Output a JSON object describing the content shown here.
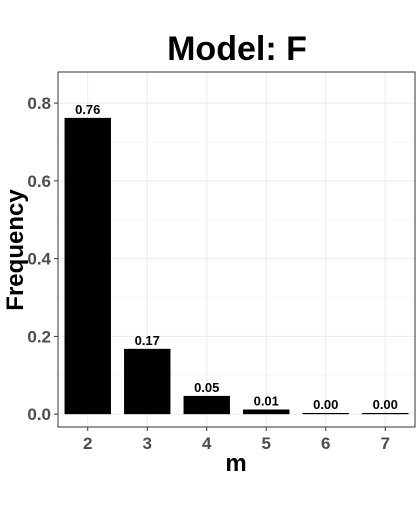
{
  "chart_data": {
    "type": "bar",
    "title": "Model: F",
    "xlabel": "m",
    "ylabel": "Frequency",
    "categories": [
      "2",
      "3",
      "4",
      "5",
      "6",
      "7"
    ],
    "values": [
      0.762,
      0.168,
      0.047,
      0.012,
      0.003,
      0.002
    ],
    "data_labels": [
      "0.76",
      "0.17",
      "0.05",
      "0.01",
      "0.00",
      "0.00"
    ],
    "ylim": [
      -0.033,
      0.88
    ],
    "yticks": [
      0.0,
      0.2,
      0.4,
      0.6,
      0.8
    ],
    "ytick_labels": [
      "0.0",
      "0.2",
      "0.4",
      "0.6",
      "0.8"
    ],
    "grid": true,
    "legend": "none",
    "colors": {
      "bar": "#000000",
      "grid": "#ebebeb",
      "border": "#333333"
    }
  }
}
